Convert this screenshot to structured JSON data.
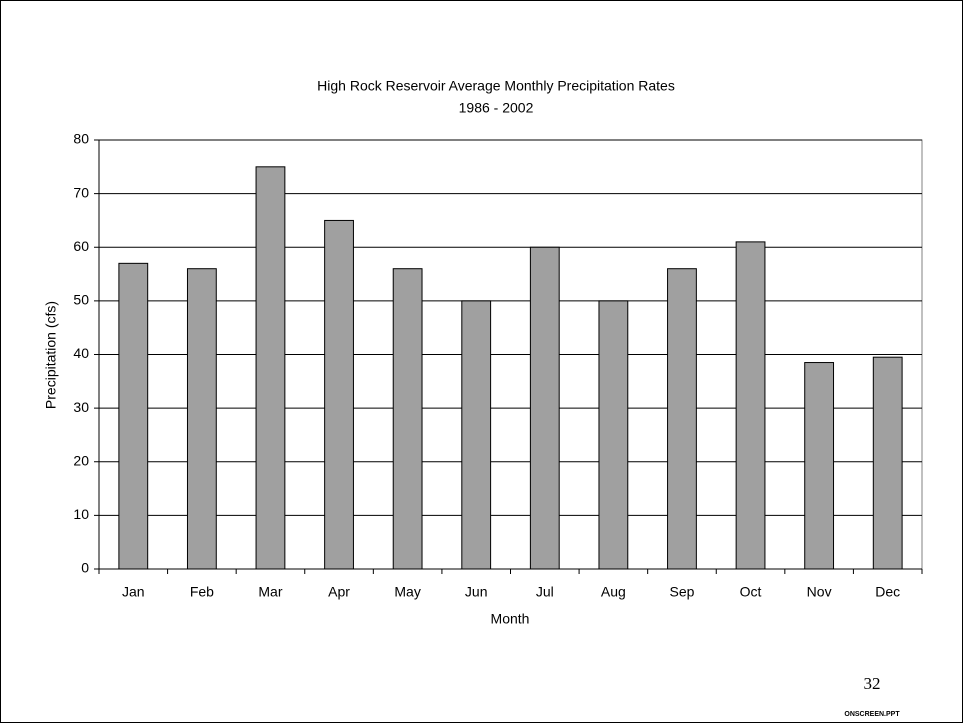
{
  "chart_data": {
    "type": "bar",
    "title": "High Rock Reservoir Average Monthly Precipitation Rates",
    "subtitle": "1986 - 2002",
    "x_label": "Month",
    "y_label": "Precipitation (cfs)",
    "categories": [
      "Jan",
      "Feb",
      "Mar",
      "Apr",
      "May",
      "Jun",
      "Jul",
      "Aug",
      "Sep",
      "Oct",
      "Nov",
      "Dec"
    ],
    "values": [
      57,
      56,
      75,
      65,
      56,
      50,
      60,
      50,
      56,
      61,
      38.5,
      39.5
    ],
    "color": "#a0a0a0",
    "ylim": [
      0,
      80
    ],
    "yticks": [
      0,
      10,
      20,
      30,
      40,
      50,
      60,
      70,
      80
    ],
    "grid": true
  },
  "slide": {
    "page_number": "32",
    "footer": "ONSCREEN.PPT"
  }
}
